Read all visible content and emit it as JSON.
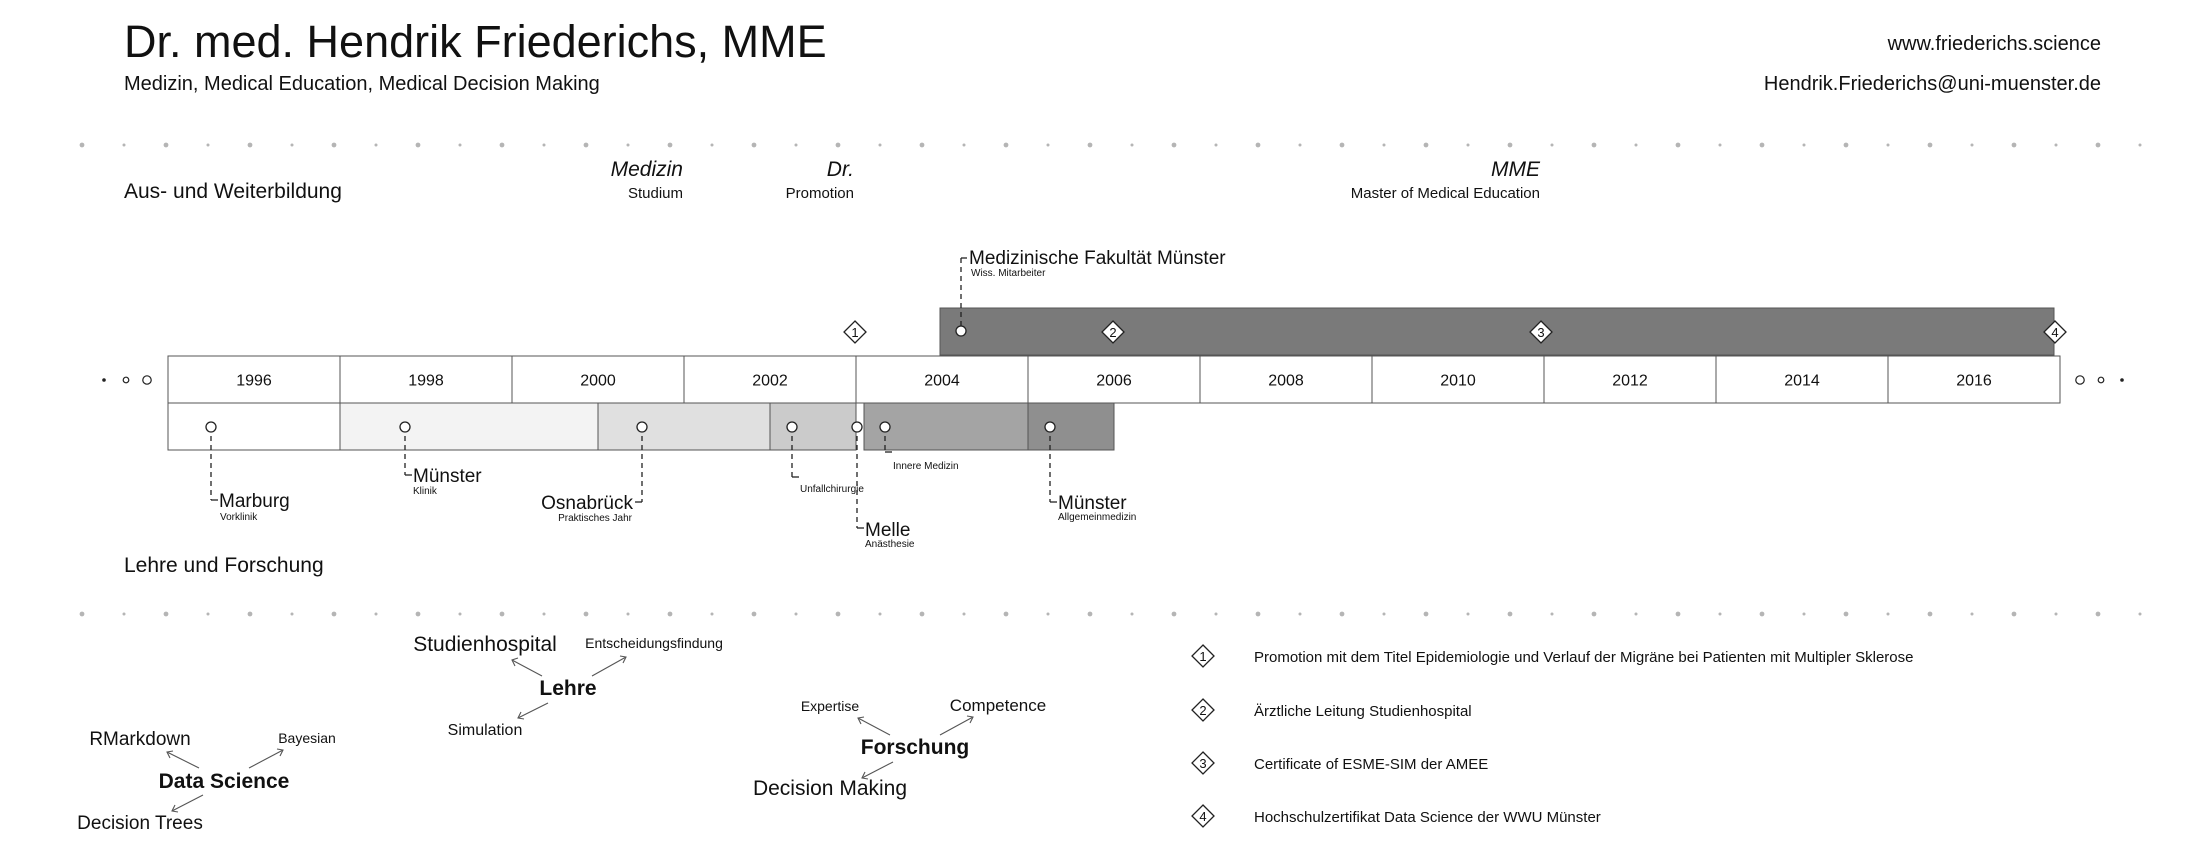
{
  "header": {
    "name": "Dr. med. Hendrik Friederichs, MME",
    "subtitle": "Medizin, Medical Education, Medical Decision Making",
    "website": "www.friederichs.science",
    "email": "Hendrik.Friederichs@uni-muenster.de"
  },
  "sections": {
    "education": "Aus- und Weiterbildung",
    "teaching": "Lehre und Forschung"
  },
  "degrees": [
    {
      "title": "Medizin",
      "sub": "Studium"
    },
    {
      "title": "Dr.",
      "sub": "Promotion"
    },
    {
      "title": "MME",
      "sub": "Master of Medical Education"
    }
  ],
  "years": [
    "1996",
    "1998",
    "2000",
    "2002",
    "2004",
    "2006",
    "2008",
    "2010",
    "2012",
    "2014",
    "2016"
  ],
  "upper_station": {
    "place": "Medizinische Fakultät Münster",
    "role": "Wiss. Mitarbeiter"
  },
  "milestone_markers": [
    "1",
    "2",
    "3",
    "4"
  ],
  "stations": [
    {
      "place": "Marburg",
      "role": "Vorklinik"
    },
    {
      "place": "Münster",
      "role": "Klinik"
    },
    {
      "place": "Osnabrück",
      "role": "Praktisches Jahr"
    },
    {
      "place": "",
      "role": "Unfallchirurgie"
    },
    {
      "place": "Melle",
      "role": "Anästhesie"
    },
    {
      "place": "",
      "role": "Innere Medizin"
    },
    {
      "place": "Münster",
      "role": "Allgemeinmedizin"
    }
  ],
  "mindmaps": {
    "lehre": {
      "center": "Lehre",
      "items": [
        "Studienhospital",
        "Entscheidungsfindung",
        "Simulation"
      ]
    },
    "forschung": {
      "center": "Forschung",
      "items": [
        "Expertise",
        "Competence",
        "Decision Making"
      ]
    },
    "data_science": {
      "center": "Data Science",
      "items": [
        "RMarkdown",
        "Bayesian",
        "Decision Trees"
      ]
    }
  },
  "legend": [
    {
      "marker": "1",
      "text": "Promotion mit dem Titel Epidemiologie und Verlauf der Migräne bei Patienten mit Multipler Sklerose"
    },
    {
      "marker": "2",
      "text": "Ärztliche Leitung Studienhospital"
    },
    {
      "marker": "3",
      "text": "Certificate of ESME-SIM der AMEE"
    },
    {
      "marker": "4",
      "text": "Hochschulzertifikat Data Science der WWU Münster"
    }
  ],
  "colors": {
    "dark_bar": "#7a7a7a",
    "bar_light": "#f3f3f3",
    "bar_mid": "#e0e0e0",
    "bar_gray": "#cbcbcb",
    "bar_darker": "#a4a4a4",
    "bar_dark2": "#8f8f8f",
    "dots": "#b5b5b5"
  }
}
